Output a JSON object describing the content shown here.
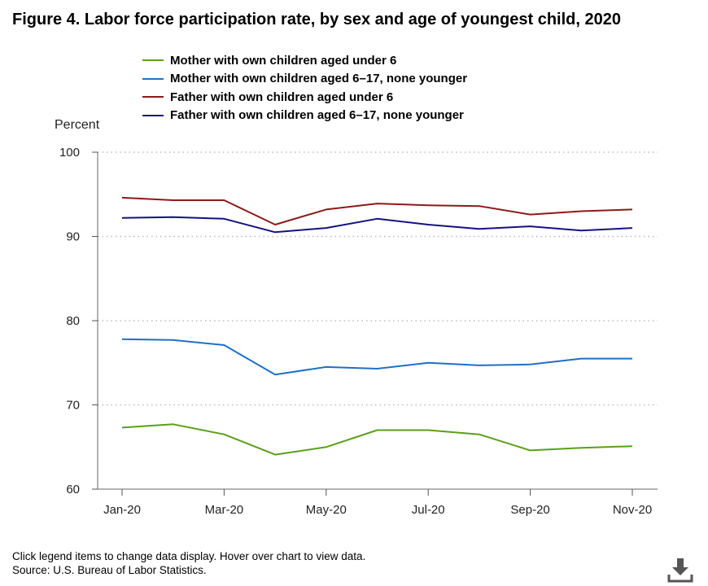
{
  "title": "Figure 4. Labor force participation rate, by sex and age of youngest child, 2020",
  "footer": {
    "instructions": "Click legend items to change data display. Hover over chart to view data.",
    "source": "Source: U.S. Bureau of Labor Statistics."
  },
  "download_icon": "download-icon",
  "chart_data": {
    "type": "line",
    "ylabel": "Percent",
    "xlabel": "",
    "ylim": [
      60,
      100
    ],
    "y_ticks": [
      60,
      70,
      80,
      90,
      100
    ],
    "grid": true,
    "legend_position": "top",
    "x": [
      "Jan-20",
      "Feb-20",
      "Mar-20",
      "Apr-20",
      "May-20",
      "Jun-20",
      "Jul-20",
      "Aug-20",
      "Sep-20",
      "Oct-20",
      "Nov-20"
    ],
    "x_tick_labels": [
      "Jan-20",
      "",
      "Mar-20",
      "",
      "May-20",
      "",
      "Jul-20",
      "",
      "Sep-20",
      "",
      "Nov-20"
    ],
    "series": [
      {
        "name": "Mother with own children aged under 6",
        "color": "#5b9f1a",
        "values": [
          67.3,
          67.7,
          66.5,
          64.1,
          65.0,
          67.0,
          67.0,
          66.5,
          64.6,
          64.9,
          65.1
        ]
      },
      {
        "name": "Mother with own children aged 6–17, none younger",
        "color": "#1f6fc5",
        "values": [
          77.8,
          77.7,
          77.1,
          73.6,
          74.5,
          74.3,
          75.0,
          74.7,
          74.8,
          75.5,
          75.5
        ]
      },
      {
        "name": "Father with own children aged under 6",
        "color": "#8b1a1a",
        "values": [
          94.6,
          94.3,
          94.3,
          91.4,
          93.2,
          93.9,
          93.7,
          93.6,
          92.6,
          93.0,
          93.2
        ]
      },
      {
        "name": "Father with own children aged 6–17, none younger",
        "color": "#16127d",
        "values": [
          92.2,
          92.3,
          92.1,
          90.5,
          91.0,
          92.1,
          91.4,
          90.9,
          91.2,
          90.7,
          91.0
        ]
      }
    ]
  }
}
